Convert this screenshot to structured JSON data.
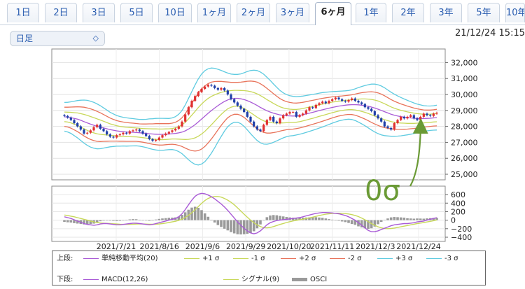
{
  "tabs": [
    {
      "label": "1日",
      "active": false
    },
    {
      "label": "2日",
      "active": false
    },
    {
      "label": "3日",
      "active": false
    },
    {
      "label": "5日",
      "active": false
    },
    {
      "label": "10日",
      "active": false
    },
    {
      "label": "1ヶ月",
      "active": false
    },
    {
      "label": "2ヶ月",
      "active": false
    },
    {
      "label": "3ヶ月",
      "active": false
    },
    {
      "label": "6ヶ月",
      "active": true
    },
    {
      "label": "1年",
      "active": false
    },
    {
      "label": "2年",
      "active": false
    },
    {
      "label": "3年",
      "active": false
    },
    {
      "label": "5年",
      "active": false
    },
    {
      "label": "10年",
      "active": false
    }
  ],
  "period_select": {
    "value": "日足"
  },
  "timestamp": "21/12/24 15:15",
  "annotation": "0σ",
  "legend": {
    "upper_prefix": "上段:",
    "lower_prefix": "下段:",
    "upper_items": [
      {
        "label": "単純移動平均(20)",
        "color": "#a95bd6"
      },
      {
        "label": "+1 σ",
        "color": "#c8d85a"
      },
      {
        "label": "-1 σ",
        "color": "#c8d85a"
      },
      {
        "label": "+2 σ",
        "color": "#e8735a"
      },
      {
        "label": "-2 σ",
        "color": "#e8735a"
      },
      {
        "label": "+3 σ",
        "color": "#5fcbe0"
      },
      {
        "label": "-3 σ",
        "color": "#5fcbe0"
      }
    ],
    "lower_items": [
      {
        "label": "MACD(12,26)",
        "color": "#a95bd6",
        "kind": "line"
      },
      {
        "label": "シグナル(9)",
        "color": "#c8d85a",
        "kind": "line"
      },
      {
        "label": "OSCI",
        "color": "#9a9a9a",
        "kind": "bar"
      }
    ]
  },
  "chart_data": [
    {
      "type": "candlestick",
      "title": "",
      "x_tick_labels": [
        "2021/7/21",
        "2021/8/16",
        "2021/9/6",
        "2021/9/29",
        "2021/10/20",
        "2021/11/11",
        "2021/12/3",
        "2021/12/24"
      ],
      "ylim": [
        25000,
        32500
      ],
      "y_ticks": [
        "25,000",
        "26,000",
        "27,000",
        "28,000",
        "29,000",
        "30,000",
        "31,000",
        "32,000"
      ],
      "colors": {
        "up": "#e03030",
        "down": "#1f3fa8"
      },
      "close": [
        28650,
        28550,
        28400,
        28200,
        28000,
        27800,
        27550,
        27600,
        27750,
        27950,
        28100,
        27850,
        27700,
        27500,
        27350,
        27300,
        27450,
        27500,
        27600,
        27550,
        27700,
        27750,
        27800,
        27700,
        27550,
        27400,
        27200,
        27100,
        27150,
        27300,
        27450,
        27550,
        27650,
        27750,
        27850,
        28000,
        28300,
        28750,
        29200,
        29600,
        29900,
        30150,
        30350,
        30500,
        30600,
        30550,
        30400,
        30300,
        30400,
        30250,
        30000,
        29700,
        29500,
        29300,
        29100,
        28900,
        28600,
        28300,
        28000,
        27800,
        27700,
        28100,
        28400,
        28600,
        28300,
        28200,
        28500,
        28700,
        28800,
        28900,
        28900,
        28600,
        28700,
        28800,
        29000,
        29200,
        29150,
        29350,
        29450,
        29550,
        29450,
        29600,
        29700,
        29800,
        29700,
        29600,
        29550,
        29650,
        29750,
        29600,
        29500,
        29400,
        29200,
        29100,
        28950,
        28700,
        28500,
        28300,
        28000,
        27900,
        27800,
        28200,
        28400,
        28600,
        28500,
        28600,
        28700,
        28500,
        28400,
        28600,
        28800,
        28700,
        28650,
        28800,
        28850
      ],
      "sma20": [
        28600,
        28580,
        28550,
        28500,
        28450,
        28380,
        28300,
        28220,
        28140,
        28070,
        28000,
        27950,
        27900,
        27850,
        27800,
        27760,
        27720,
        27690,
        27670,
        27650,
        27640,
        27630,
        27620,
        27600,
        27580,
        27560,
        27540,
        27520,
        27510,
        27500,
        27500,
        27510,
        27520,
        27540,
        27560,
        27590,
        27640,
        27720,
        27830,
        27960,
        28110,
        28280,
        28460,
        28640,
        28820,
        28990,
        29150,
        29300,
        29440,
        29560,
        29660,
        29720,
        29760,
        29760,
        29730,
        29680,
        29610,
        29520,
        29420,
        29310,
        29190,
        29080,
        28980,
        28900,
        28830,
        28770,
        28720,
        28690,
        28670,
        28660,
        28650,
        28660,
        28690,
        28730,
        28780,
        28830,
        28880,
        28930,
        28990,
        29040,
        29090,
        29140,
        29190,
        29230,
        29270,
        29300,
        29330,
        29350,
        29360,
        29360,
        29350,
        29330,
        29300,
        29260,
        29210,
        29150,
        29080,
        29000,
        28920,
        28840,
        28760,
        28700,
        28650,
        28610,
        28580,
        28550,
        28530,
        28510,
        28500,
        28490,
        28490,
        28500,
        28510,
        28530,
        28550
      ],
      "sigma": [
        300,
        310,
        330,
        360,
        390,
        420,
        450,
        470,
        480,
        480,
        470,
        450,
        420,
        390,
        360,
        340,
        320,
        310,
        300,
        295,
        290,
        285,
        280,
        280,
        285,
        295,
        310,
        320,
        330,
        335,
        335,
        330,
        325,
        330,
        350,
        390,
        450,
        540,
        640,
        740,
        830,
        900,
        940,
        950,
        930,
        890,
        830,
        760,
        690,
        620,
        560,
        520,
        500,
        500,
        520,
        560,
        610,
        660,
        700,
        730,
        740,
        730,
        700,
        660,
        610,
        560,
        510,
        470,
        440,
        420,
        410,
        400,
        395,
        390,
        385,
        380,
        375,
        370,
        365,
        360,
        350,
        340,
        330,
        320,
        310,
        305,
        300,
        300,
        310,
        330,
        360,
        390,
        420,
        450,
        480,
        500,
        510,
        510,
        500,
        480,
        460,
        440,
        420,
        400,
        380,
        360,
        340,
        320,
        300,
        285,
        270,
        260,
        255,
        255,
        260
      ]
    },
    {
      "type": "macd",
      "ylim": [
        -400,
        700
      ],
      "y_ticks": [
        "600",
        "400",
        "200",
        "0",
        "−200",
        "−400"
      ],
      "macd": [
        80,
        60,
        40,
        10,
        -20,
        -50,
        -80,
        -100,
        -110,
        -120,
        -110,
        -90,
        -80,
        -80,
        -90,
        -100,
        -110,
        -110,
        -100,
        -90,
        -80,
        -70,
        -70,
        -80,
        -90,
        -100,
        -110,
        -100,
        -80,
        -60,
        -40,
        -20,
        0,
        20,
        40,
        80,
        150,
        250,
        360,
        470,
        560,
        610,
        630,
        620,
        590,
        550,
        500,
        440,
        380,
        310,
        230,
        140,
        50,
        -40,
        -120,
        -190,
        -250,
        -300,
        -320,
        -300,
        -250,
        -180,
        -110,
        -60,
        -30,
        -10,
        0,
        10,
        20,
        30,
        40,
        50,
        60,
        80,
        100,
        120,
        140,
        160,
        170,
        180,
        180,
        175,
        170,
        160,
        150,
        130,
        110,
        80,
        40,
        0,
        -60,
        -120,
        -180,
        -240,
        -270,
        -270,
        -250,
        -220,
        -190,
        -160,
        -130,
        -110,
        -100,
        -90,
        -80,
        -80,
        -70,
        -60,
        -40,
        -30,
        -20,
        0,
        20,
        40,
        60
      ],
      "signal": [
        120,
        110,
        95,
        80,
        60,
        40,
        20,
        0,
        -20,
        -40,
        -55,
        -65,
        -70,
        -75,
        -80,
        -85,
        -90,
        -95,
        -98,
        -100,
        -98,
        -95,
        -92,
        -90,
        -90,
        -92,
        -95,
        -96,
        -95,
        -90,
        -80,
        -68,
        -55,
        -40,
        -25,
        -5,
        25,
        65,
        115,
        175,
        245,
        320,
        395,
        460,
        510,
        540,
        555,
        555,
        540,
        510,
        470,
        420,
        360,
        290,
        215,
        140,
        70,
        0,
        -60,
        -110,
        -150,
        -175,
        -180,
        -170,
        -150,
        -125,
        -100,
        -78,
        -55,
        -35,
        -18,
        -5,
        8,
        22,
        38,
        55,
        72,
        90,
        108,
        125,
        140,
        150,
        158,
        162,
        163,
        160,
        155,
        145,
        130,
        110,
        85,
        50,
        10,
        -35,
        -80,
        -120,
        -155,
        -180,
        -195,
        -200,
        -195,
        -185,
        -170,
        -155,
        -140,
        -125,
        -110,
        -95,
        -80,
        -68,
        -55,
        -42,
        -28,
        -12,
        5
      ]
    }
  ]
}
